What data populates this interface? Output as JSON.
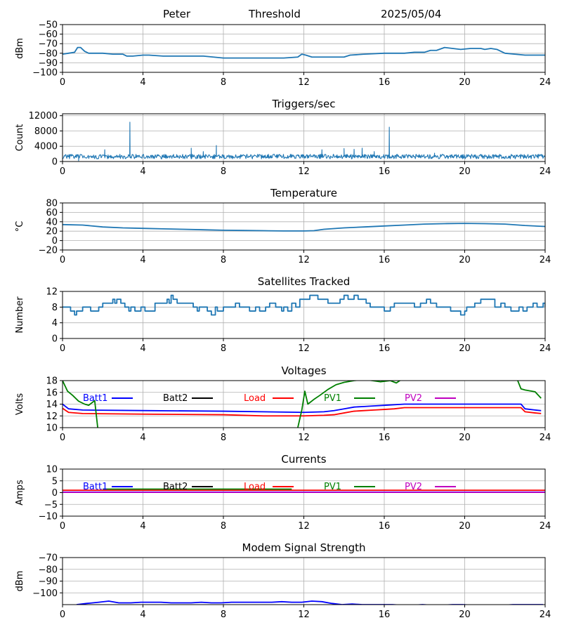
{
  "header": {
    "station": "Peter",
    "mode": "Threshold",
    "date": "2025/05/04"
  },
  "chart_data": [
    {
      "id": "rssi",
      "type": "line",
      "title": "",
      "xlabel": "",
      "ylabel": "dBm",
      "xlim": [
        0,
        24
      ],
      "ylim": [
        -100,
        -50
      ],
      "xticks": [
        "0",
        "4",
        "8",
        "12",
        "16",
        "20",
        "24"
      ],
      "yticks": [
        -100,
        -90,
        -80,
        -70,
        -60,
        -50
      ],
      "ytick_labels": [
        "−100",
        "−90",
        "−80",
        "−70",
        "−60",
        "−50"
      ],
      "grid": true,
      "series": [
        {
          "color": "#1f77b4",
          "x": [
            0,
            0.3,
            0.6,
            0.75,
            0.9,
            1.1,
            1.3,
            1.6,
            2,
            2.5,
            3,
            3.2,
            3.5,
            4,
            4.3,
            5,
            6,
            7,
            8,
            8.5,
            9,
            10,
            11,
            11.7,
            11.9,
            12.1,
            12.4,
            13,
            14,
            14.3,
            15,
            16,
            16.5,
            17,
            17.5,
            18,
            18.3,
            18.6,
            19,
            19.4,
            19.8,
            20.3,
            20.8,
            21,
            21.3,
            21.6,
            22,
            23,
            24
          ],
          "y": [
            -81,
            -80,
            -79,
            -74,
            -74,
            -78,
            -80,
            -80,
            -80,
            -81,
            -81,
            -83,
            -83,
            -82,
            -82,
            -83,
            -83,
            -83,
            -85,
            -85,
            -85,
            -85,
            -85,
            -84,
            -81,
            -82,
            -84,
            -84,
            -84,
            -82,
            -81,
            -80,
            -80,
            -80,
            -79,
            -79,
            -77,
            -77,
            -74,
            -75,
            -76,
            -75,
            -75,
            -76,
            -75,
            -76,
            -80,
            -82,
            -82
          ]
        }
      ]
    },
    {
      "id": "triggers",
      "type": "line",
      "title": "Triggers/sec",
      "xlabel": "",
      "ylabel": "Count",
      "xlim": [
        0,
        24
      ],
      "ylim": [
        0,
        12500
      ],
      "xticks": [
        "0",
        "4",
        "8",
        "12",
        "16",
        "20",
        "24"
      ],
      "yticks": [
        0,
        4000,
        8000,
        12000
      ],
      "ytick_labels": [
        "0",
        "4000",
        "8000",
        "12000"
      ],
      "grid": true,
      "series": [
        {
          "color": "#1f77b4",
          "baseline": 1300,
          "noise": 600,
          "spikes": [
            [
              0.8,
              200
            ],
            [
              2.1,
              3100
            ],
            [
              3.35,
              10300
            ],
            [
              6.4,
              3500
            ],
            [
              7.0,
              2600
            ],
            [
              7.65,
              4200
            ],
            [
              12.9,
              3100
            ],
            [
              14.0,
              3400
            ],
            [
              14.5,
              3200
            ],
            [
              14.9,
              3500
            ],
            [
              15.5,
              2600
            ],
            [
              16.25,
              9000
            ],
            [
              18.5,
              2200
            ]
          ]
        }
      ]
    },
    {
      "id": "temperature",
      "type": "line",
      "title": "Temperature",
      "xlabel": "",
      "ylabel": "°C",
      "xlim": [
        0,
        24
      ],
      "ylim": [
        -20,
        80
      ],
      "xticks": [
        "0",
        "4",
        "8",
        "12",
        "16",
        "20",
        "24"
      ],
      "yticks": [
        -20,
        0,
        20,
        40,
        60,
        80
      ],
      "ytick_labels": [
        "−20",
        "0",
        "20",
        "40",
        "60",
        "80"
      ],
      "grid": true,
      "series": [
        {
          "color": "#1f77b4",
          "x": [
            0,
            1,
            2,
            3,
            4,
            5,
            6,
            7,
            8,
            9,
            10,
            11,
            12,
            12.5,
            13,
            14,
            15,
            16,
            17,
            18,
            19,
            20,
            21,
            22,
            23,
            24
          ],
          "y": [
            34,
            33,
            29,
            27,
            26,
            25,
            24,
            23,
            22,
            21.5,
            21,
            20.5,
            20.5,
            21,
            24,
            27,
            29,
            31,
            33,
            35,
            36,
            36.5,
            36,
            35,
            32,
            30
          ]
        }
      ]
    },
    {
      "id": "satellites",
      "type": "line",
      "title": "Satellites Tracked",
      "xlabel": "",
      "ylabel": "Number",
      "xlim": [
        0,
        24
      ],
      "ylim": [
        0,
        12
      ],
      "xticks": [
        "0",
        "4",
        "8",
        "12",
        "16",
        "20",
        "24"
      ],
      "yticks": [
        0,
        4,
        8,
        12
      ],
      "ytick_labels": [
        "0",
        "4",
        "8",
        "12"
      ],
      "grid": true,
      "series": [
        {
          "color": "#1f77b4",
          "step": true,
          "x": [
            0,
            0.4,
            0.6,
            0.7,
            0.8,
            1.0,
            1.4,
            1.6,
            1.8,
            2.0,
            2.3,
            2.5,
            2.6,
            2.7,
            2.9,
            3.1,
            3.3,
            3.4,
            3.6,
            3.9,
            4.1,
            4.3,
            4.6,
            5.0,
            5.2,
            5.3,
            5.4,
            5.5,
            5.7,
            5.8,
            6.0,
            6.5,
            6.7,
            6.8,
            7.0,
            7.2,
            7.4,
            7.6,
            7.7,
            8.0,
            8.3,
            8.6,
            8.8,
            9.0,
            9.3,
            9.6,
            9.8,
            10.1,
            10.3,
            10.6,
            10.9,
            11.0,
            11.2,
            11.4,
            11.6,
            11.8,
            12.0,
            12.3,
            12.7,
            12.9,
            13.2,
            13.6,
            13.8,
            13.9,
            14.0,
            14.2,
            14.4,
            14.5,
            14.7,
            14.9,
            15.1,
            15.3,
            15.5,
            15.8,
            16.0,
            16.3,
            16.5,
            16.9,
            17.2,
            17.5,
            17.8,
            18.0,
            18.1,
            18.3,
            18.6,
            18.9,
            19.1,
            19.3,
            19.6,
            19.8,
            20.0,
            20.1,
            20.5,
            20.8,
            21.1,
            21.5,
            21.8,
            22.0,
            22.3,
            22.5,
            22.7,
            22.9,
            23.1,
            23.4,
            23.6,
            23.9,
            24
          ],
          "y": [
            8,
            7,
            6,
            7,
            7,
            8,
            7,
            7,
            8,
            9,
            9,
            10,
            9,
            10,
            9,
            8,
            7,
            8,
            7,
            8,
            7,
            7,
            9,
            9,
            10,
            9,
            11,
            10,
            9,
            9,
            9,
            8,
            7,
            8,
            8,
            7,
            6,
            8,
            7,
            8,
            8,
            9,
            8,
            8,
            7,
            8,
            7,
            8,
            9,
            8,
            7,
            8,
            7,
            9,
            8,
            10,
            10,
            11,
            10,
            10,
            9,
            9,
            10,
            10,
            11,
            10,
            10,
            11,
            10,
            10,
            9,
            8,
            8,
            8,
            7,
            8,
            9,
            9,
            9,
            8,
            9,
            9,
            10,
            9,
            8,
            8,
            8,
            7,
            7,
            6,
            7,
            8,
            9,
            10,
            10,
            8,
            9,
            8,
            7,
            7,
            8,
            7,
            8,
            9,
            8,
            9,
            8
          ]
        }
      ]
    },
    {
      "id": "voltages",
      "type": "line",
      "title": "Voltages",
      "xlabel": "",
      "ylabel": "Volts",
      "xlim": [
        0,
        24
      ],
      "ylim": [
        10,
        18
      ],
      "xticks": [
        "0",
        "4",
        "8",
        "12",
        "16",
        "20",
        "24"
      ],
      "yticks": [
        10,
        12,
        14,
        16,
        18
      ],
      "ytick_labels": [
        "10",
        "12",
        "14",
        "16",
        "18"
      ],
      "grid": true,
      "legend": [
        "Batt1",
        "Batt2",
        "Load",
        "PV1",
        "PV2"
      ],
      "series": [
        {
          "name": "Batt1",
          "color": "#0000ff",
          "x": [
            0,
            0.3,
            1,
            4,
            8,
            12,
            13,
            13.5,
            14,
            14.5,
            15,
            15.5,
            16,
            16.5,
            17,
            20,
            22,
            22.8,
            23,
            23.5,
            23.8
          ],
          "y": [
            14,
            13.2,
            13.0,
            12.9,
            12.8,
            12.6,
            12.7,
            12.9,
            13.2,
            13.5,
            13.6,
            13.7,
            13.8,
            13.9,
            14.0,
            14.0,
            14.0,
            14.0,
            13.2,
            13.0,
            12.9
          ]
        },
        {
          "name": "Load",
          "color": "#ff0000",
          "x": [
            0,
            0.3,
            1,
            4,
            8,
            10,
            12,
            13,
            13.5,
            14,
            14.5,
            15,
            15.5,
            16,
            16.5,
            17,
            20,
            22,
            22.8,
            23,
            23.5,
            23.8
          ],
          "y": [
            13.3,
            12.6,
            12.4,
            12.3,
            12.2,
            12.0,
            12.0,
            12.1,
            12.2,
            12.5,
            12.8,
            12.9,
            13.0,
            13.1,
            13.2,
            13.4,
            13.4,
            13.4,
            13.4,
            12.7,
            12.5,
            12.4
          ]
        },
        {
          "name": "PV1",
          "color": "#008000",
          "x": [
            0,
            0.25,
            0.5,
            0.8,
            1.1,
            1.3,
            1.45,
            1.6,
            1.75
          ],
          "y": [
            18,
            16.2,
            15.5,
            14.5,
            14,
            13.8,
            14.2,
            14.6,
            10
          ]
        },
        {
          "name": "PV1",
          "color": "#008000",
          "x": [
            11.7,
            11.9,
            12.05,
            12.2,
            12.5,
            12.8,
            13.2,
            13.6,
            14,
            14.5,
            15,
            15.4,
            15.8,
            16.3,
            16.6,
            16.9
          ],
          "y": [
            10,
            13,
            16.2,
            14,
            14.8,
            15.5,
            16.5,
            17.3,
            17.7,
            18,
            18.2,
            18,
            17.8,
            18,
            17.6,
            18.3
          ]
        },
        {
          "name": "PV1",
          "color": "#008000",
          "x": [
            22.6,
            22.8,
            23,
            23.5,
            23.8
          ],
          "y": [
            18.3,
            16.6,
            16.4,
            16.1,
            15
          ]
        }
      ]
    },
    {
      "id": "currents",
      "type": "line",
      "title": "Currents",
      "xlabel": "",
      "ylabel": "Amps",
      "xlim": [
        0,
        24
      ],
      "ylim": [
        -10,
        10
      ],
      "xticks": [
        "0",
        "4",
        "8",
        "12",
        "16",
        "20",
        "24"
      ],
      "yticks": [
        -10,
        -5,
        0,
        5,
        10
      ],
      "ytick_labels": [
        "−10",
        "−5",
        "0",
        "5",
        "10"
      ],
      "grid": true,
      "legend": [
        "Batt1",
        "Batt2",
        "Load",
        "PV1",
        "PV2"
      ],
      "series": [
        {
          "name": "Load",
          "color": "#ff0000",
          "x": [
            0,
            24
          ],
          "y": [
            1.0,
            1.0
          ]
        },
        {
          "name": "PV1",
          "color": "#008000",
          "x": [
            2.0,
            11.4
          ],
          "y": [
            1.5,
            1.5
          ]
        },
        {
          "name": "Batt1",
          "color": "#0000ff",
          "x": [
            0,
            24
          ],
          "y": [
            0.2,
            0.2
          ]
        },
        {
          "name": "PV2",
          "color": "#bf00bf",
          "x": [
            0,
            24
          ],
          "y": [
            0.1,
            0.1
          ]
        }
      ]
    },
    {
      "id": "modem",
      "type": "line",
      "title": "Modem Signal Strength",
      "xlabel": "",
      "ylabel": "dBm",
      "xlim": [
        0,
        24
      ],
      "ylim": [
        -110,
        -70
      ],
      "xticks": [
        "0",
        "4",
        "8",
        "12",
        "16",
        "20",
        "24"
      ],
      "yticks": [
        -100,
        -90,
        -80,
        -70
      ],
      "ytick_labels": [
        "−100",
        "−90",
        "−80",
        "−70"
      ],
      "grid": true,
      "series": [
        {
          "color": "#0000ff",
          "x": [
            0.7,
            1.2,
            1.8,
            2.3,
            2.8,
            3.4,
            3.9,
            4.4,
            4.9,
            5.4,
            5.9,
            6.4,
            6.9,
            7.4,
            7.9,
            8.4,
            8.9,
            9.4,
            9.9,
            10.4,
            10.9,
            11.4,
            11.9,
            12.4,
            12.9,
            13.4,
            13.9,
            14.4,
            14.9,
            15.4,
            15.9,
            16.4,
            16.9,
            17.4,
            17.9,
            18.4,
            18.9,
            19.4,
            19.9,
            20.4,
            20.9,
            21.4,
            21.9,
            22.4,
            22.9,
            23.4,
            23.9
          ],
          "y": [
            -110,
            -109,
            -108,
            -107,
            -108.5,
            -108.5,
            -108,
            -108,
            -108,
            -108.5,
            -108.5,
            -108.5,
            -108,
            -108.5,
            -108.5,
            -108,
            -108,
            -108,
            -108,
            -108,
            -107.5,
            -108,
            -108,
            -107,
            -107.5,
            -109,
            -110,
            -109.5,
            -110,
            -110,
            -110,
            -110,
            -110.5,
            -110.5,
            -110,
            -110.5,
            -110.5,
            -110,
            -110,
            -110.5,
            -110.5,
            -110.5,
            -110.5,
            -110,
            -110,
            -110,
            -110
          ]
        }
      ]
    }
  ]
}
